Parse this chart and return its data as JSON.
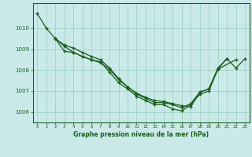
{
  "background_color": "#caeaea",
  "grid_color": "#99ccbb",
  "line_color": "#1a5c1a",
  "title": "Graphe pression niveau de la mer (hPa)",
  "ylim": [
    1005.5,
    1011.2
  ],
  "yticks": [
    1006,
    1007,
    1008,
    1009,
    1010
  ],
  "xlim": [
    -0.5,
    23.5
  ],
  "line1_x": [
    0,
    1,
    2,
    3,
    4,
    5,
    6,
    7,
    8,
    9,
    10,
    11,
    12,
    13,
    14,
    15,
    16,
    17,
    18,
    19,
    20,
    21
  ],
  "line1_y": [
    1010.7,
    1010.0,
    1009.5,
    1009.15,
    1008.85,
    1008.65,
    1008.5,
    1008.35,
    1008.05,
    1007.55,
    1007.2,
    1006.9,
    1006.7,
    1006.55,
    1006.5,
    1006.4,
    1006.3,
    1006.25,
    1006.95,
    1007.1,
    1008.05,
    1008.55
  ],
  "line2_x": [
    2,
    3,
    4,
    5,
    6,
    7,
    8,
    9,
    10,
    11,
    12,
    13,
    14,
    15,
    16,
    17,
    18,
    19,
    20,
    21,
    22,
    23
  ],
  "line2_y": [
    1009.5,
    1009.2,
    1009.05,
    1008.85,
    1008.65,
    1008.5,
    1008.1,
    1007.6,
    1007.2,
    1006.85,
    1006.65,
    1006.45,
    1006.45,
    1006.35,
    1006.2,
    1006.4,
    1006.95,
    1007.1,
    1008.1,
    1008.55,
    1008.1,
    1008.55
  ],
  "line3_x": [
    2,
    3,
    4,
    5,
    6,
    7,
    8,
    9,
    10,
    11,
    12,
    13,
    14,
    15,
    16,
    17,
    18,
    19,
    20,
    22
  ],
  "line3_y": [
    1009.5,
    1008.9,
    1008.85,
    1008.65,
    1008.5,
    1008.4,
    1007.9,
    1007.4,
    1007.1,
    1006.75,
    1006.55,
    1006.35,
    1006.35,
    1006.15,
    1006.05,
    1006.35,
    1006.85,
    1007.0,
    1008.05,
    1008.5
  ]
}
